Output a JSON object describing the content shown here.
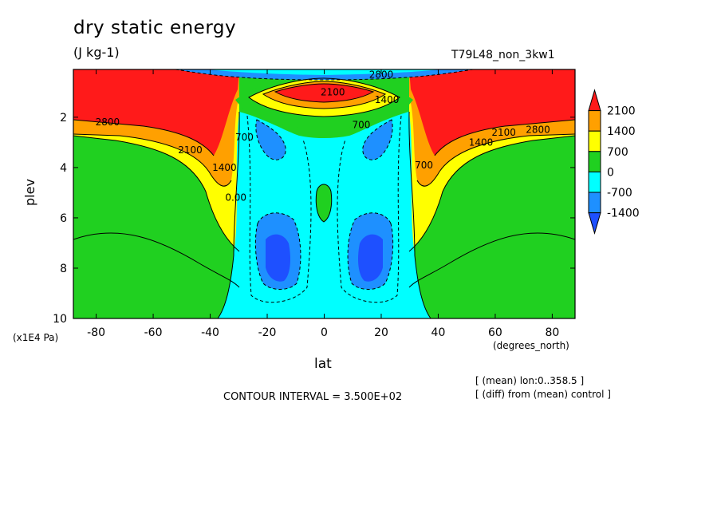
{
  "chart_data": {
    "type": "heatmap",
    "title": "dry static energy",
    "subtitle": "(J kg-1)",
    "run_label": "T79L48_non_3kw1",
    "xlabel": "lat",
    "x_units": "(degrees_north)",
    "ylabel": "plev",
    "y_units": "(x1E4 Pa)",
    "xlim": [
      -88,
      88
    ],
    "ylim": [
      10,
      0.1
    ],
    "x_ticks": [
      -80,
      -60,
      -40,
      -20,
      0,
      20,
      40,
      60,
      80
    ],
    "y_ticks": [
      2,
      4,
      6,
      8,
      10
    ],
    "contour_interval": "CONTOUR INTERVAL = 3.500E+02",
    "notes": [
      "[ (mean) lon:0..358.5 ]",
      "[ (diff) from (mean) control ]"
    ],
    "colorbar": {
      "labels": [
        "2100",
        "1400",
        "700",
        "0",
        "-700",
        "-1400"
      ],
      "bands": [
        {
          "min": 2100,
          "max": null,
          "color": "#ff1a1a"
        },
        {
          "min": 1400,
          "max": 2100,
          "color": "#ffa000"
        },
        {
          "min": 700,
          "max": 1400,
          "color": "#ffff00"
        },
        {
          "min": 0,
          "max": 700,
          "color": "#20d020"
        },
        {
          "min": -700,
          "max": 0,
          "color": "#00ffff"
        },
        {
          "min": -1400,
          "max": -700,
          "color": "#1e90ff"
        },
        {
          "min": null,
          "max": -1400,
          "color": "#1e50ff"
        }
      ]
    },
    "contour_labels": [
      {
        "text": "2800",
        "lat": -76,
        "plev": 2.2
      },
      {
        "text": "2100",
        "lat": -47,
        "plev": 3.3
      },
      {
        "text": "1400",
        "lat": -35,
        "plev": 4.0
      },
      {
        "text": "700",
        "lat": -28,
        "plev": 2.8
      },
      {
        "text": "0.00",
        "lat": -31,
        "plev": 5.2
      },
      {
        "text": "2100",
        "lat": 3,
        "plev": 1.0
      },
      {
        "text": "700",
        "lat": 13,
        "plev": 2.3
      },
      {
        "text": "1400",
        "lat": 22,
        "plev": 1.3
      },
      {
        "text": "2800",
        "lat": 20,
        "plev": 0.3
      },
      {
        "text": "700",
        "lat": 35,
        "plev": 3.9
      },
      {
        "text": "1400",
        "lat": 55,
        "plev": 3.0
      },
      {
        "text": "2100",
        "lat": 63,
        "plev": 2.6
      },
      {
        "text": "2800",
        "lat": 75,
        "plev": 2.5
      }
    ]
  }
}
